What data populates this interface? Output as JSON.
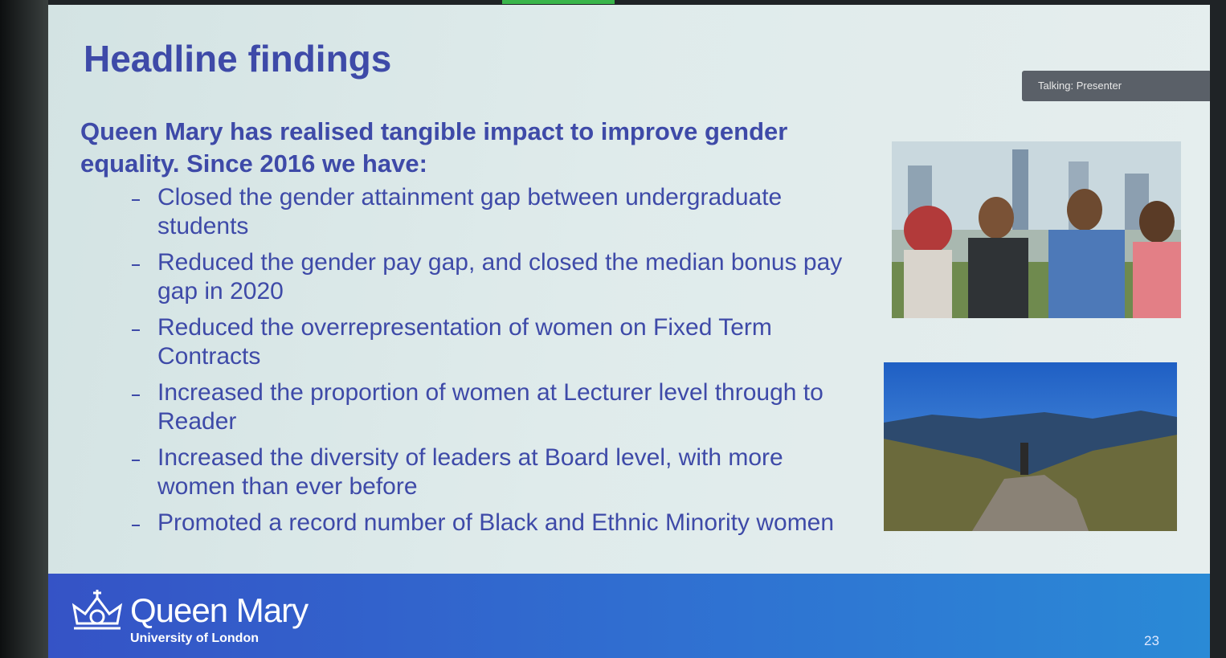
{
  "slide": {
    "title": "Headline findings",
    "intro": "Queen Mary has realised tangible impact to improve gender equality. Since 2016 we have:",
    "bullets": [
      "Closed the gender attainment gap between undergraduate students",
      "Reduced the gender pay gap, and closed the median bonus pay gap in 2020",
      "Reduced the overrepresentation of women on Fixed Term Contracts",
      "Increased the proportion of women at Lecturer level through to Reader",
      "Increased the diversity of leaders at Board level, with more women than ever before",
      "Promoted a record number of Black and Ethnic Minority women"
    ],
    "badge": "Talking: Presenter",
    "logo_name": "Queen Mary",
    "logo_sub": "University of London",
    "page_number": "23"
  }
}
